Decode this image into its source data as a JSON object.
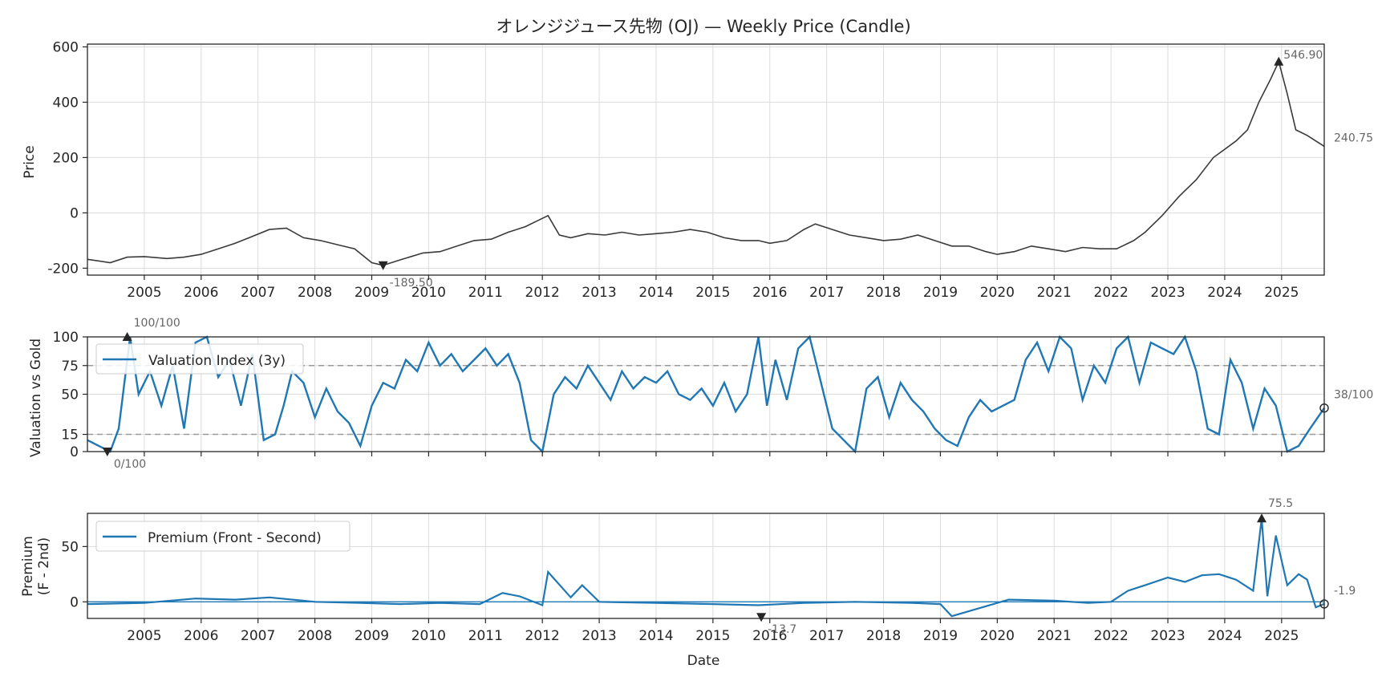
{
  "chart_data": {
    "title": "オレンジジュース先物 (OJ) — Weekly Price (Candle)",
    "x_range": [
      "2004-01-01",
      "2025-09-30"
    ],
    "x_ticks": [
      "2005",
      "2006",
      "2007",
      "2008",
      "2009",
      "2010",
      "2011",
      "2012",
      "2013",
      "2014",
      "2015",
      "2016",
      "2017",
      "2018",
      "2019",
      "2020",
      "2021",
      "2022",
      "2023",
      "2024",
      "2025"
    ],
    "xlabel": "Date",
    "grid": true,
    "price": {
      "type": "line",
      "ylabel": "Price",
      "ylim": [
        -225,
        610
      ],
      "yticks": [
        -200,
        0,
        200,
        400,
        600
      ],
      "ytick_labels": [
        "-200",
        "0",
        "200",
        "400",
        "600"
      ],
      "color": "#3a3a3a",
      "series": {
        "x": [
          2004.0,
          2004.4,
          2004.7,
          2005.0,
          2005.4,
          2005.7,
          2006.0,
          2006.3,
          2006.6,
          2006.9,
          2007.2,
          2007.5,
          2007.8,
          2008.1,
          2008.4,
          2008.7,
          2009.0,
          2009.2,
          2009.5,
          2009.9,
          2010.2,
          2010.5,
          2010.8,
          2011.1,
          2011.4,
          2011.7,
          2011.9,
          2012.1,
          2012.3,
          2012.5,
          2012.8,
          2013.1,
          2013.4,
          2013.7,
          2014.0,
          2014.3,
          2014.6,
          2014.9,
          2015.2,
          2015.5,
          2015.8,
          2016.0,
          2016.3,
          2016.6,
          2016.8,
          2017.1,
          2017.4,
          2017.7,
          2018.0,
          2018.3,
          2018.6,
          2018.9,
          2019.2,
          2019.5,
          2019.8,
          2020.0,
          2020.3,
          2020.6,
          2020.9,
          2021.2,
          2021.5,
          2021.8,
          2022.1,
          2022.4,
          2022.6,
          2022.9,
          2023.2,
          2023.5,
          2023.8,
          2024.0,
          2024.2,
          2024.4,
          2024.6,
          2024.8,
          2024.95,
          2025.1,
          2025.25,
          2025.45,
          2025.6,
          2025.75
        ],
        "y": [
          -168,
          -180,
          -160,
          -158,
          -165,
          -160,
          -150,
          -130,
          -110,
          -85,
          -60,
          -55,
          -90,
          -100,
          -115,
          -130,
          -180,
          -189.5,
          -170,
          -145,
          -140,
          -120,
          -100,
          -95,
          -70,
          -50,
          -30,
          -10,
          -80,
          -90,
          -75,
          -80,
          -70,
          -80,
          -75,
          -70,
          -60,
          -70,
          -90,
          -100,
          -100,
          -110,
          -100,
          -60,
          -40,
          -60,
          -80,
          -90,
          -100,
          -95,
          -80,
          -100,
          -120,
          -120,
          -140,
          -150,
          -140,
          -120,
          -130,
          -140,
          -125,
          -130,
          -130,
          -100,
          -70,
          -10,
          60,
          120,
          200,
          230,
          260,
          300,
          400,
          480,
          546.9,
          430,
          300,
          280,
          260,
          240.75
        ]
      },
      "max": {
        "label": "546.90",
        "value": 546.9,
        "x": 2024.95
      },
      "min": {
        "label": "-189.50",
        "value": -189.5,
        "x": 2009.2
      },
      "last": {
        "label": "240.75",
        "value": 240.75
      }
    },
    "valuation": {
      "type": "line",
      "ylabel": "Valuation vs Gold",
      "ylim": [
        0,
        100
      ],
      "yticks": [
        0,
        15,
        50,
        75,
        100
      ],
      "ytick_labels": [
        "0",
        "15",
        "50",
        "75",
        "100"
      ],
      "thresholds": [
        75,
        15
      ],
      "legend": "Valuation Index (3y)",
      "legend_position": "upper left",
      "color": "#1f77b4",
      "series": {
        "x": [
          2004.0,
          2004.2,
          2004.4,
          2004.55,
          2004.75,
          2004.9,
          2005.1,
          2005.3,
          2005.5,
          2005.7,
          2005.9,
          2006.1,
          2006.3,
          2006.5,
          2006.7,
          2006.9,
          2007.1,
          2007.3,
          2007.45,
          2007.6,
          2007.8,
          2008.0,
          2008.2,
          2008.4,
          2008.6,
          2008.8,
          2009.0,
          2009.2,
          2009.4,
          2009.6,
          2009.8,
          2010.0,
          2010.2,
          2010.4,
          2010.6,
          2010.8,
          2011.0,
          2011.2,
          2011.4,
          2011.6,
          2011.8,
          2012.0,
          2012.2,
          2012.4,
          2012.6,
          2012.8,
          2013.0,
          2013.2,
          2013.4,
          2013.6,
          2013.8,
          2014.0,
          2014.2,
          2014.4,
          2014.6,
          2014.8,
          2015.0,
          2015.2,
          2015.4,
          2015.6,
          2015.8,
          2015.95,
          2016.1,
          2016.3,
          2016.5,
          2016.7,
          2016.9,
          2017.1,
          2017.3,
          2017.5,
          2017.7,
          2017.9,
          2018.1,
          2018.3,
          2018.5,
          2018.7,
          2018.9,
          2019.1,
          2019.3,
          2019.5,
          2019.7,
          2019.9,
          2020.1,
          2020.3,
          2020.5,
          2020.7,
          2020.9,
          2021.1,
          2021.3,
          2021.5,
          2021.7,
          2021.9,
          2022.1,
          2022.3,
          2022.5,
          2022.7,
          2022.9,
          2023.1,
          2023.3,
          2023.5,
          2023.7,
          2023.9,
          2024.1,
          2024.3,
          2024.5,
          2024.7,
          2024.9,
          2025.1,
          2025.3,
          2025.5,
          2025.75
        ],
        "y": [
          10,
          5,
          0,
          20,
          100,
          50,
          70,
          40,
          75,
          20,
          95,
          100,
          65,
          80,
          40,
          85,
          10,
          15,
          40,
          70,
          60,
          30,
          55,
          35,
          25,
          5,
          40,
          60,
          55,
          80,
          70,
          95,
          75,
          85,
          70,
          80,
          90,
          75,
          85,
          60,
          10,
          0,
          50,
          65,
          55,
          75,
          60,
          45,
          70,
          55,
          65,
          60,
          70,
          50,
          45,
          55,
          40,
          60,
          35,
          50,
          100,
          40,
          80,
          45,
          90,
          100,
          60,
          20,
          10,
          0,
          55,
          65,
          30,
          60,
          45,
          35,
          20,
          10,
          5,
          30,
          45,
          35,
          40,
          45,
          80,
          95,
          70,
          100,
          90,
          45,
          75,
          60,
          90,
          100,
          60,
          95,
          90,
          85,
          100,
          70,
          20,
          15,
          80,
          60,
          20,
          55,
          40,
          0,
          5,
          20,
          38
        ]
      },
      "max": {
        "label": "100/100",
        "value": 100,
        "x": 2004.7
      },
      "min": {
        "label": "0/100",
        "value": 0,
        "x": 2004.35
      },
      "last": {
        "label": "38/100",
        "value": 38
      }
    },
    "premium": {
      "type": "line",
      "ylabel": "Premium\n(F - 2nd)",
      "ylabel_lines": [
        "Premium",
        "(F - 2nd)"
      ],
      "ylim": [
        -15,
        80
      ],
      "yticks": [
        0,
        50
      ],
      "ytick_labels": [
        "0",
        "50"
      ],
      "legend": "Premium (Front - Second)",
      "legend_position": "upper left",
      "color": "#1f77b4",
      "series": {
        "x": [
          2004.0,
          2005.0,
          2005.9,
          2006.6,
          2007.2,
          2008.0,
          2008.8,
          2009.5,
          2010.2,
          2010.9,
          2011.3,
          2011.6,
          2012.0,
          2012.1,
          2012.5,
          2012.7,
          2013.0,
          2014.0,
          2015.0,
          2015.8,
          2016.6,
          2017.5,
          2018.5,
          2019.0,
          2019.2,
          2020.2,
          2021.0,
          2021.6,
          2022.0,
          2022.3,
          2022.6,
          2023.0,
          2023.3,
          2023.6,
          2023.9,
          2024.2,
          2024.5,
          2024.65,
          2024.75,
          2024.9,
          2025.1,
          2025.3,
          2025.45,
          2025.6,
          2025.75
        ],
        "y": [
          -2,
          -1,
          3,
          2,
          4,
          0,
          -1,
          -2,
          -1,
          -2,
          8,
          5,
          -3,
          27,
          4,
          15,
          0,
          -1,
          -2,
          -3,
          -1,
          0,
          -1,
          -2,
          -13,
          2,
          1,
          -1,
          0,
          10,
          15,
          22,
          18,
          24,
          25,
          20,
          10,
          75.5,
          5,
          60,
          15,
          25,
          20,
          -5,
          -1.9
        ]
      },
      "max": {
        "label": "75.5",
        "value": 75.5,
        "x": 2024.65
      },
      "min": {
        "label": "-13.7",
        "value": -13.7,
        "x": 2015.85
      },
      "last": {
        "label": "-1.9",
        "value": -1.9
      }
    }
  }
}
